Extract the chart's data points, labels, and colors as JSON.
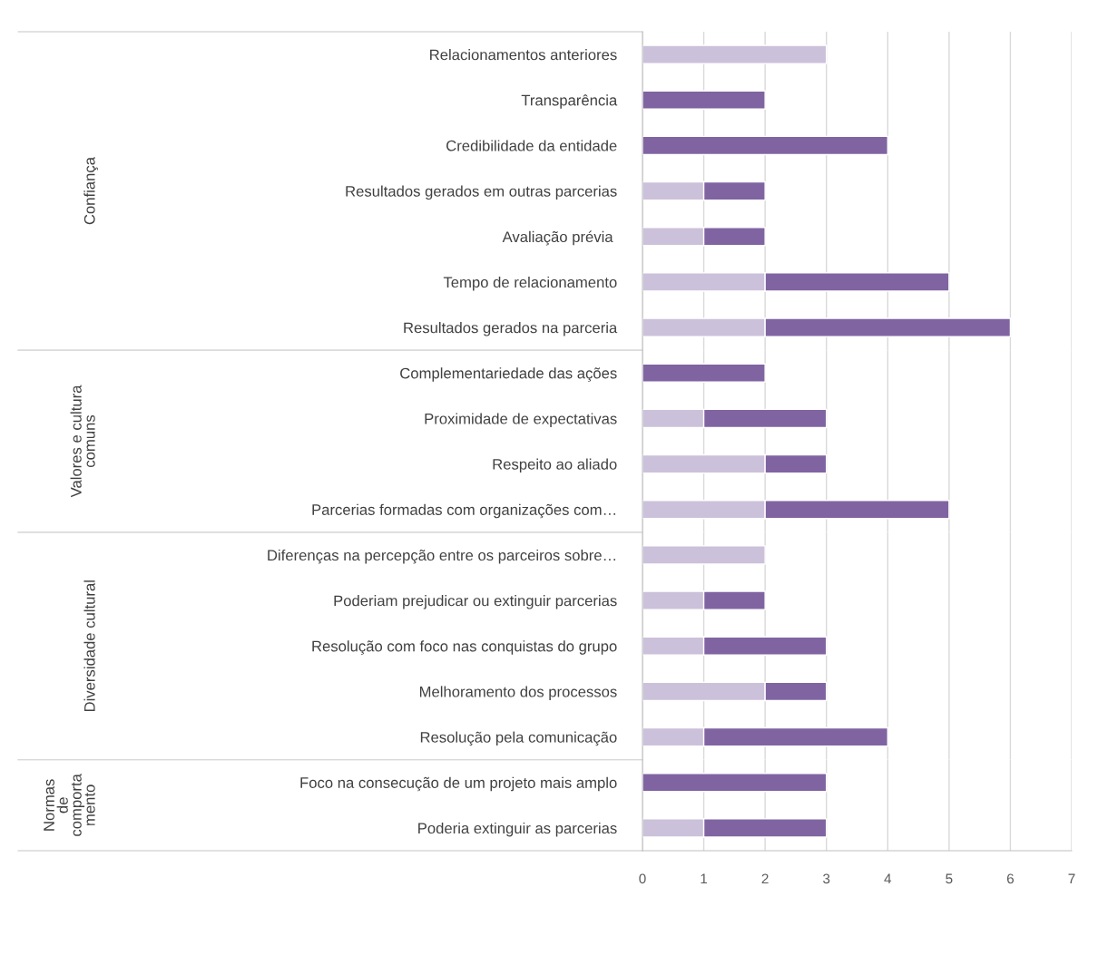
{
  "chart_data": [
    {
      "type": "bar",
      "orientation": "horizontal",
      "stacked": true,
      "ylabel": "Confiança",
      "categories": [
        "Relacionamentos anteriores",
        "Transparência",
        "Credibilidade da entidade",
        "Resultados gerados em outras parcerias",
        "Avaliação prévia ",
        "Tempo de relacionamento",
        "Resultados gerados na parceria"
      ],
      "series": [
        {
          "color": "#ccc1da",
          "values": [
            3,
            null,
            null,
            1,
            1,
            2,
            2
          ]
        },
        {
          "color": "#8064a2",
          "values": [
            null,
            2,
            4,
            1,
            1,
            3,
            4
          ]
        }
      ],
      "xlim": [
        0,
        7
      ],
      "xticks": [
        0,
        1,
        2,
        3,
        4,
        5,
        6,
        7
      ],
      "grid": "x",
      "tick_labels": "y"
    },
    {
      "type": "bar",
      "orientation": "horizontal",
      "stacked": true,
      "ylabel": "Valores e cultura\ncomuns",
      "categories": [
        "Complementariedade das ações",
        "Proximidade de expectativas",
        "Respeito ao aliado",
        "Parcerias formadas com organizações com…"
      ],
      "series": [
        {
          "color": "#ccc1da",
          "values": [
            null,
            1,
            2,
            2
          ]
        },
        {
          "color": "#8064a2",
          "values": [
            2,
            2,
            1,
            3
          ]
        }
      ],
      "xlim": [
        0,
        7
      ],
      "xticks": [
        0,
        1,
        2,
        3,
        4,
        5,
        6,
        7
      ],
      "grid": "x",
      "tick_labels": "y"
    },
    {
      "type": "bar",
      "orientation": "horizontal",
      "stacked": true,
      "ylabel": "Diversidade cultural",
      "categories": [
        "Diferenças na percepção entre os parceiros sobre…",
        "Poderiam prejudicar ou extinguir parcerias",
        "Resolução com foco nas conquistas do grupo",
        "Melhoramento dos processos",
        "Resolução pela comunicação"
      ],
      "series": [
        {
          "color": "#ccc1da",
          "values": [
            2,
            1,
            1,
            2,
            1
          ]
        },
        {
          "color": "#8064a2",
          "values": [
            null,
            1,
            2,
            1,
            3
          ]
        }
      ],
      "xlim": [
        0,
        7
      ],
      "xticks": [
        0,
        1,
        2,
        3,
        4,
        5,
        6,
        7
      ],
      "grid": "x",
      "tick_labels": "y"
    },
    {
      "type": "bar",
      "orientation": "horizontal",
      "stacked": true,
      "ylabel": "Normas\nde\ncomporta\nmento",
      "categories": [
        "Foco na consecução de um projeto mais amplo",
        "Poderia extinguir as parcerias"
      ],
      "series": [
        {
          "color": "#ccc1da",
          "values": [
            null,
            1
          ]
        },
        {
          "color": "#8064a2",
          "values": [
            3,
            2
          ]
        }
      ],
      "xlim": [
        0,
        7
      ],
      "xticks": [
        0,
        1,
        2,
        3,
        4,
        5,
        6,
        7
      ],
      "grid": "x"
    }
  ]
}
